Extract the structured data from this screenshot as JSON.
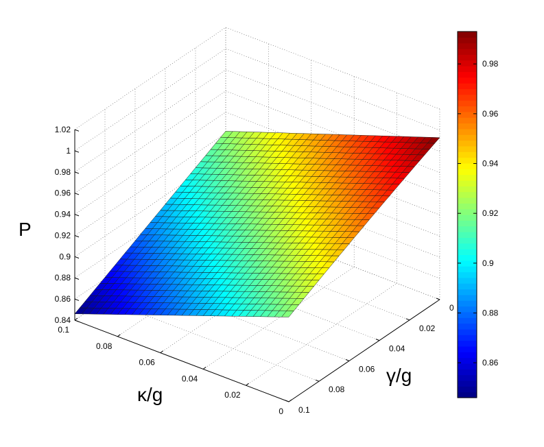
{
  "chart_data": {
    "type": "surface",
    "zlabel": "P",
    "xlabel": "κ/g",
    "ylabel": "γ/g",
    "x_axis": {
      "ticks": [
        0,
        0.02,
        0.04,
        0.06,
        0.08,
        0.1
      ],
      "tick_labels": [
        "0",
        "0.02",
        "0.04",
        "0.06",
        "0.08",
        "0.1"
      ],
      "range": [
        0,
        0.1
      ]
    },
    "y_axis": {
      "ticks": [
        0,
        0.02,
        0.04,
        0.06,
        0.08,
        0.1
      ],
      "tick_labels": [
        "0",
        "0.02",
        "0.04",
        "0.06",
        "0.08",
        "0.1"
      ],
      "range": [
        0,
        0.1
      ]
    },
    "z_axis": {
      "ticks": [
        0.84,
        0.86,
        0.88,
        0.9,
        0.92,
        0.94,
        0.96,
        0.98,
        1,
        1.02
      ],
      "tick_labels": [
        "0.84",
        "0.86",
        "0.88",
        "0.9",
        "0.92",
        "0.94",
        "0.96",
        "0.98",
        "1",
        "1.02"
      ],
      "range": [
        0.84,
        1.02
      ]
    },
    "corner_values": [
      {
        "kappa": 0.1,
        "gamma": 0.1,
        "P": 0.846
      },
      {
        "kappa": 0.0,
        "gamma": 0.1,
        "P": 0.92
      },
      {
        "kappa": 0.1,
        "gamma": 0.0,
        "P": 0.922
      },
      {
        "kappa": 0.0,
        "gamma": 0.0,
        "P": 0.993
      }
    ],
    "grid_resolution": 31,
    "colormap": "jet",
    "colorbar": {
      "ticks": [
        0.86,
        0.88,
        0.9,
        0.92,
        0.94,
        0.96,
        0.98
      ],
      "tick_labels": [
        "0.86",
        "0.88",
        "0.9",
        "0.92",
        "0.94",
        "0.96",
        "0.98"
      ],
      "range": [
        0.846,
        0.993
      ]
    },
    "grid": true
  }
}
